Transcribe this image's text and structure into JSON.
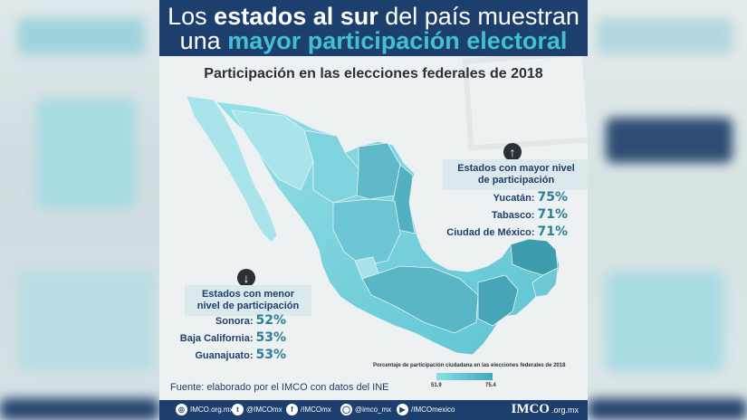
{
  "header": {
    "line1_pre": "Los ",
    "line1_bold": "estados al sur",
    "line1_post": " del país muestran",
    "line2_pre": "una ",
    "line2_accent": "mayor participación electoral"
  },
  "subtitle": "Participación en las elecciones federales de 2018",
  "high_panel": {
    "title_line1": "Estados con mayor nivel",
    "title_line2": "de participación",
    "items": [
      {
        "state": "Yucatán:",
        "value": "75%"
      },
      {
        "state": "Tabasco:",
        "value": "71%"
      },
      {
        "state": "Ciudad de México:",
        "value": "71%"
      }
    ]
  },
  "low_panel": {
    "title_line1": "Estados con menor",
    "title_line2": "nivel de participación",
    "items": [
      {
        "state": "Sonora:",
        "value": "52%"
      },
      {
        "state": "Baja California:",
        "value": "53%"
      },
      {
        "state": "Guanajuato:",
        "value": "53%"
      }
    ]
  },
  "legend": {
    "title": "Porcentaje de participación ciudadana en las elecciones federales de 2018",
    "min": "51.9",
    "max": "75.4",
    "color_min": "#8fdde6",
    "color_max": "#3fa9bb"
  },
  "source": "Fuente: elaborado por el IMCO con datos del INE",
  "footer": {
    "website": "IMCO.org.mx",
    "twitter": "@IMCOmx",
    "facebook": "/IMCOmx",
    "instagram": "@imco_mx",
    "youtube": "/IMCOmexico",
    "brand": "IMCO",
    "brand_domain": ".org.mx"
  },
  "colors": {
    "navy": "#1d3f6e",
    "accent": "#42c0d3",
    "map_light": "#8fdde6",
    "map_dark": "#3fa9bb"
  }
}
